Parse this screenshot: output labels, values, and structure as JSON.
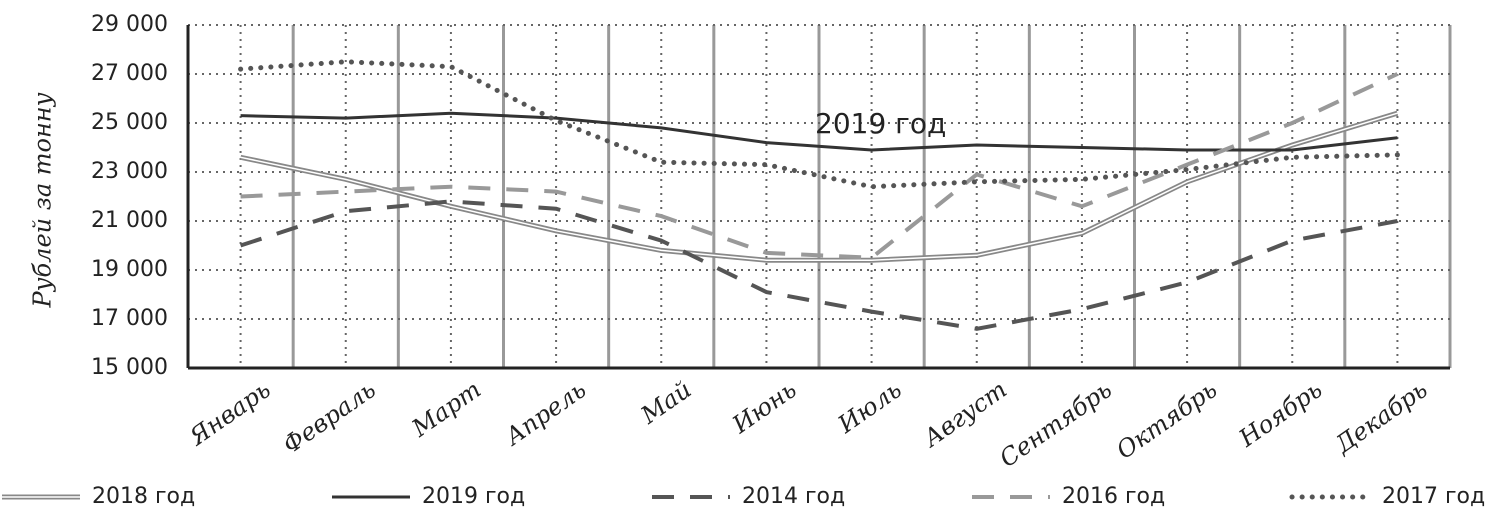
{
  "chart_data": {
    "type": "line",
    "y_label": "Рублей за тонну",
    "annotation": "2019 год",
    "categories": [
      "Январь",
      "Февраль",
      "Март",
      "Апрель",
      "Май",
      "Июнь",
      "Июль",
      "Август",
      "Сентябрь",
      "Октябрь",
      "Ноябрь",
      "Декабрь"
    ],
    "series": [
      {
        "name": "2018 год",
        "color": "#888888",
        "style": "double",
        "values": [
          23600,
          22700,
          21600,
          20600,
          19800,
          19400,
          19400,
          19600,
          20500,
          22600,
          24100,
          25400
        ]
      },
      {
        "name": "2019 год",
        "color": "#333333",
        "style": "solid",
        "values": [
          25300,
          25200,
          25400,
          25200,
          24800,
          24200,
          23900,
          24100,
          24000,
          23900,
          23900,
          24400
        ]
      },
      {
        "name": "2014 год",
        "color": "#555555",
        "style": "dash",
        "values": [
          20000,
          21400,
          21800,
          21500,
          20200,
          18100,
          17300,
          16600,
          17400,
          18500,
          20200,
          21000
        ]
      },
      {
        "name": "2016 год",
        "color": "#999999",
        "style": "dash",
        "values": [
          22000,
          22200,
          22400,
          22200,
          21200,
          19700,
          19500,
          22900,
          21600,
          23300,
          25000,
          27000
        ]
      },
      {
        "name": "2017 год",
        "color": "#555555",
        "style": "dot",
        "values": [
          27200,
          27500,
          27300,
          25100,
          23400,
          23300,
          22400,
          22600,
          22700,
          23100,
          23600,
          23700
        ]
      }
    ],
    "ylim": [
      15000,
      29000
    ],
    "yticks": [
      {
        "value": 15000,
        "label": "15 000"
      },
      {
        "value": 17000,
        "label": "17 000"
      },
      {
        "value": 19000,
        "label": "19 000"
      },
      {
        "value": 21000,
        "label": "21 000"
      },
      {
        "value": 23000,
        "label": "23 000"
      },
      {
        "value": 25000,
        "label": "25 000"
      },
      {
        "value": 27000,
        "label": "27 000"
      },
      {
        "value": 29000,
        "label": "29 000"
      }
    ],
    "grid": true,
    "legend": "bottom"
  }
}
